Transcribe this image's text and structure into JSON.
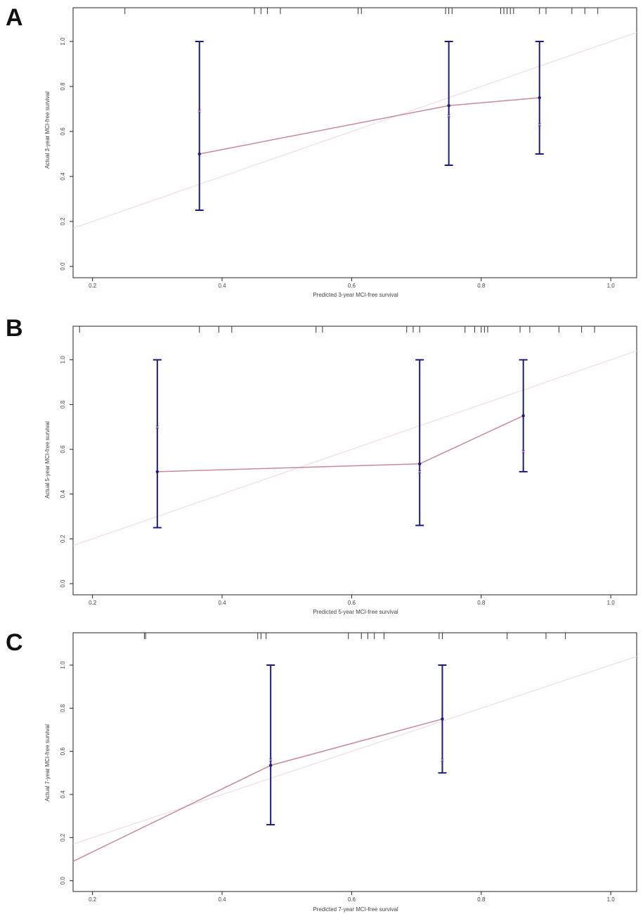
{
  "chart_data": [
    {
      "panel": "A",
      "type": "line",
      "xlabel": "Predicted 3-year MCI-free survival",
      "ylabel": "Actual 3-year MCI-free survival",
      "xticks": [
        "0.2",
        "0.4",
        "0.6",
        "0.8",
        "1.0"
      ],
      "yticks": [
        "0.0",
        "0.2",
        "0.4",
        "0.6",
        "0.8",
        "1.0"
      ],
      "xlim": [
        0.17,
        1.04
      ],
      "ylim": [
        -0.05,
        1.15
      ],
      "ideal_line": [
        [
          0.17,
          0.17
        ],
        [
          1.04,
          1.04
        ]
      ],
      "points": [
        {
          "x": 0.365,
          "y": 0.5,
          "lower": 0.25,
          "upper": 1.0,
          "bias_corrected": 0.69
        },
        {
          "x": 0.75,
          "y": 0.715,
          "lower": 0.45,
          "upper": 1.0,
          "bias_corrected": 0.67
        },
        {
          "x": 0.89,
          "y": 0.75,
          "lower": 0.5,
          "upper": 1.0,
          "bias_corrected": 0.63
        }
      ],
      "rug": [
        0.25,
        0.45,
        0.46,
        0.47,
        0.49,
        0.61,
        0.615,
        0.745,
        0.75,
        0.755,
        0.83,
        0.835,
        0.84,
        0.845,
        0.85,
        0.89,
        0.9,
        0.94,
        0.96,
        0.98
      ]
    },
    {
      "panel": "B",
      "type": "line",
      "xlabel": "Predicted 5-year MCI-free survival",
      "ylabel": "Actual 5-year MCI-free survival",
      "xticks": [
        "0.2",
        "0.4",
        "0.6",
        "0.8",
        "1.0"
      ],
      "yticks": [
        "0.0",
        "0.2",
        "0.4",
        "0.6",
        "0.8",
        "1.0"
      ],
      "xlim": [
        0.17,
        1.04
      ],
      "ylim": [
        -0.05,
        1.15
      ],
      "ideal_line": [
        [
          0.17,
          0.17
        ],
        [
          1.04,
          1.04
        ]
      ],
      "points": [
        {
          "x": 0.3,
          "y": 0.5,
          "lower": 0.25,
          "upper": 1.0,
          "bias_corrected": 0.7
        },
        {
          "x": 0.705,
          "y": 0.535,
          "lower": 0.26,
          "upper": 1.0,
          "bias_corrected": 0.5
        },
        {
          "x": 0.865,
          "y": 0.75,
          "lower": 0.5,
          "upper": 1.0,
          "bias_corrected": 0.59
        }
      ],
      "rug": [
        0.18,
        0.365,
        0.395,
        0.415,
        0.545,
        0.555,
        0.685,
        0.695,
        0.705,
        0.775,
        0.79,
        0.8,
        0.805,
        0.81,
        0.86,
        0.875,
        0.92,
        0.955,
        0.975
      ]
    },
    {
      "panel": "C",
      "type": "line",
      "xlabel": "Predicted 7-year MCI-free survival",
      "ylabel": "Actual 7-year MCI-free survival",
      "xticks": [
        "0.2",
        "0.4",
        "0.6",
        "0.8",
        "1.0"
      ],
      "yticks": [
        "0.0",
        "0.2",
        "0.4",
        "0.6",
        "0.8",
        "1.0"
      ],
      "xlim": [
        0.17,
        1.04
      ],
      "ylim": [
        -0.05,
        1.15
      ],
      "ideal_line": [
        [
          0.17,
          0.17
        ],
        [
          1.04,
          1.04
        ]
      ],
      "extrapolated_start": [
        0.17,
        0.09
      ],
      "points": [
        {
          "x": 0.475,
          "y": 0.535,
          "lower": 0.26,
          "upper": 1.0,
          "bias_corrected": 0.56
        },
        {
          "x": 0.74,
          "y": 0.75,
          "lower": 0.5,
          "upper": 1.0,
          "bias_corrected": 0.56
        }
      ],
      "rug": [
        0.28,
        0.282,
        0.455,
        0.46,
        0.468,
        0.595,
        0.615,
        0.625,
        0.635,
        0.65,
        0.735,
        0.74,
        0.84,
        0.9,
        0.93
      ]
    }
  ],
  "colors": {
    "errorbar": "#1c1c80",
    "calibration_line": "#c98a96",
    "ideal_line": "#f3dbe0",
    "axis": "#222222",
    "rug": "#333333",
    "bias_point": "#a470a8"
  }
}
